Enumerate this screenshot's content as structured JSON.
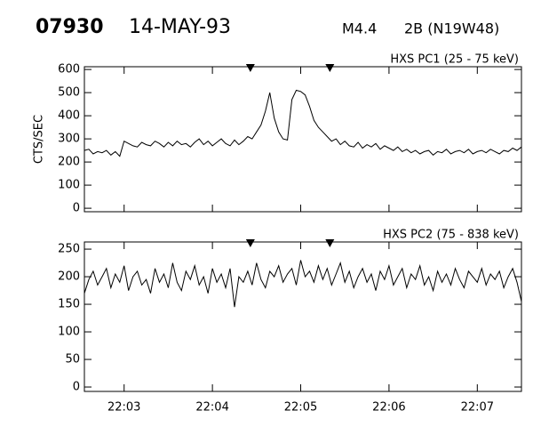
{
  "header": {
    "event": "07930",
    "date": "14-MAY-93",
    "class": "M4.4",
    "flare": "2B (N19W48)"
  },
  "chart_data": [
    {
      "type": "line",
      "title": "HXS PC1 (25 - 75 keV)",
      "ylabel": "CTS/SEC",
      "color": "#000000",
      "xlim": [
        2.55,
        7.5
      ],
      "ylim": [
        -15,
        612
      ],
      "yticks": [
        0,
        100,
        200,
        300,
        400,
        500,
        600
      ],
      "xticks": [
        {
          "value": 3,
          "label": "22:03"
        },
        {
          "value": 4,
          "label": "22:04"
        },
        {
          "value": 5,
          "label": "22:05"
        },
        {
          "value": 6,
          "label": "22:06"
        },
        {
          "value": 7,
          "label": "22:07"
        }
      ],
      "markers": [
        4.43,
        5.33
      ],
      "x": [
        2.55,
        2.6,
        2.65,
        2.7,
        2.75,
        2.8,
        2.85,
        2.9,
        2.95,
        3.0,
        3.05,
        3.1,
        3.15,
        3.2,
        3.25,
        3.3,
        3.35,
        3.4,
        3.45,
        3.5,
        3.55,
        3.6,
        3.65,
        3.7,
        3.75,
        3.8,
        3.85,
        3.9,
        3.95,
        4.0,
        4.05,
        4.1,
        4.15,
        4.2,
        4.25,
        4.3,
        4.35,
        4.4,
        4.45,
        4.5,
        4.55,
        4.6,
        4.65,
        4.7,
        4.75,
        4.8,
        4.85,
        4.9,
        4.95,
        5.0,
        5.05,
        5.1,
        5.15,
        5.2,
        5.25,
        5.3,
        5.35,
        5.4,
        5.45,
        5.5,
        5.55,
        5.6,
        5.65,
        5.7,
        5.75,
        5.8,
        5.85,
        5.9,
        5.95,
        6.0,
        6.05,
        6.1,
        6.15,
        6.2,
        6.25,
        6.3,
        6.35,
        6.4,
        6.45,
        6.5,
        6.55,
        6.6,
        6.65,
        6.7,
        6.75,
        6.8,
        6.85,
        6.9,
        6.95,
        7.0,
        7.05,
        7.1,
        7.15,
        7.2,
        7.25,
        7.3,
        7.35,
        7.4,
        7.45,
        7.5
      ],
      "values": [
        250,
        255,
        235,
        245,
        240,
        250,
        230,
        245,
        225,
        290,
        280,
        270,
        265,
        285,
        275,
        270,
        290,
        280,
        265,
        285,
        270,
        290,
        275,
        280,
        265,
        285,
        300,
        275,
        290,
        270,
        285,
        300,
        280,
        270,
        295,
        275,
        290,
        310,
        300,
        330,
        360,
        420,
        500,
        390,
        330,
        300,
        295,
        470,
        510,
        505,
        490,
        440,
        380,
        350,
        330,
        310,
        290,
        300,
        275,
        290,
        270,
        265,
        285,
        260,
        275,
        265,
        280,
        255,
        270,
        260,
        250,
        265,
        245,
        255,
        240,
        250,
        235,
        245,
        250,
        230,
        245,
        240,
        255,
        235,
        245,
        250,
        240,
        255,
        235,
        245,
        250,
        240,
        255,
        245,
        235,
        250,
        245,
        260,
        250,
        265
      ]
    },
    {
      "type": "line",
      "title": "HXS PC2 (75 - 838 keV)",
      "color": "#000000",
      "xlim": [
        2.55,
        7.5
      ],
      "ylim": [
        -8,
        263
      ],
      "yticks": [
        0,
        50,
        100,
        150,
        200,
        250
      ],
      "xticks": [
        {
          "value": 3,
          "label": "22:03"
        },
        {
          "value": 4,
          "label": "22:04"
        },
        {
          "value": 5,
          "label": "22:05"
        },
        {
          "value": 6,
          "label": "22:06"
        },
        {
          "value": 7,
          "label": "22:07"
        }
      ],
      "markers": [
        4.43,
        5.33
      ],
      "x": [
        2.55,
        2.6,
        2.65,
        2.7,
        2.75,
        2.8,
        2.85,
        2.9,
        2.95,
        3.0,
        3.05,
        3.1,
        3.15,
        3.2,
        3.25,
        3.3,
        3.35,
        3.4,
        3.45,
        3.5,
        3.55,
        3.6,
        3.65,
        3.7,
        3.75,
        3.8,
        3.85,
        3.9,
        3.95,
        4.0,
        4.05,
        4.1,
        4.15,
        4.2,
        4.25,
        4.3,
        4.35,
        4.4,
        4.45,
        4.5,
        4.55,
        4.6,
        4.65,
        4.7,
        4.75,
        4.8,
        4.85,
        4.9,
        4.95,
        5.0,
        5.05,
        5.1,
        5.15,
        5.2,
        5.25,
        5.3,
        5.35,
        5.4,
        5.45,
        5.5,
        5.55,
        5.6,
        5.65,
        5.7,
        5.75,
        5.8,
        5.85,
        5.9,
        5.95,
        6.0,
        6.05,
        6.1,
        6.15,
        6.2,
        6.25,
        6.3,
        6.35,
        6.4,
        6.45,
        6.5,
        6.55,
        6.6,
        6.65,
        6.7,
        6.75,
        6.8,
        6.85,
        6.9,
        6.95,
        7.0,
        7.05,
        7.1,
        7.15,
        7.2,
        7.25,
        7.3,
        7.35,
        7.4,
        7.45,
        7.5
      ],
      "values": [
        170,
        195,
        210,
        185,
        200,
        215,
        180,
        205,
        190,
        220,
        175,
        200,
        210,
        185,
        195,
        170,
        215,
        190,
        205,
        180,
        225,
        190,
        175,
        210,
        195,
        220,
        185,
        200,
        170,
        215,
        190,
        205,
        180,
        215,
        145,
        200,
        190,
        210,
        185,
        225,
        195,
        180,
        210,
        200,
        220,
        190,
        205,
        215,
        185,
        230,
        200,
        210,
        190,
        220,
        195,
        215,
        185,
        205,
        225,
        190,
        210,
        180,
        200,
        215,
        190,
        205,
        175,
        210,
        195,
        220,
        185,
        200,
        215,
        180,
        205,
        195,
        220,
        185,
        200,
        175,
        210,
        190,
        205,
        185,
        215,
        195,
        180,
        210,
        200,
        190,
        215,
        185,
        205,
        195,
        210,
        180,
        200,
        215,
        190,
        155
      ]
    }
  ]
}
